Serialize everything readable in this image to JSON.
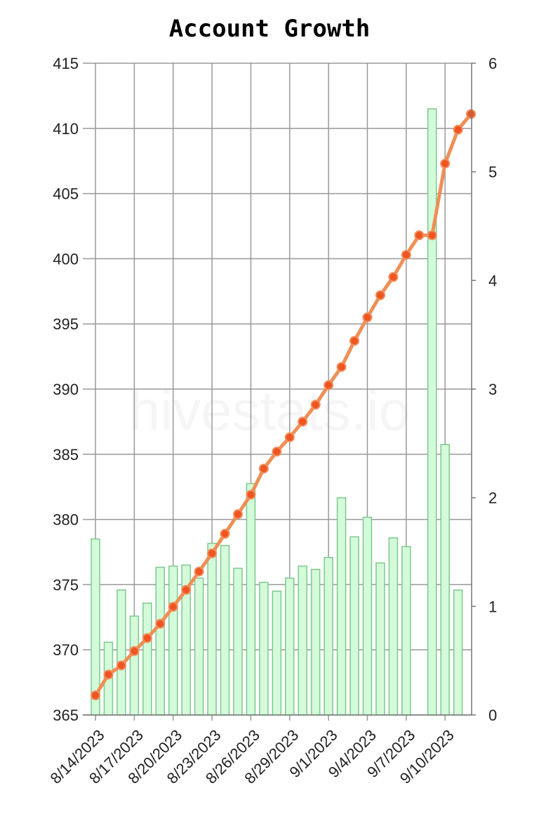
{
  "chart_data": {
    "type": "bar+line",
    "title": "Account Growth",
    "watermark": "hivestats.io",
    "left_axis": {
      "min": 365,
      "max": 415,
      "ticks": [
        "365",
        "370",
        "375",
        "380",
        "385",
        "390",
        "395",
        "400",
        "405",
        "410",
        "415"
      ]
    },
    "right_axis": {
      "min": 0,
      "max": 6,
      "ticks": [
        "0",
        "1",
        "2",
        "3",
        "4",
        "5",
        "6"
      ]
    },
    "x_tick_labels": [
      "8/14/2023",
      "8/17/2023",
      "8/20/2023",
      "8/23/2023",
      "8/26/2023",
      "8/29/2023",
      "9/1/2023",
      "9/4/2023",
      "9/7/2023",
      "9/10/2023"
    ],
    "dates": [
      "8/14/2023",
      "8/15/2023",
      "8/16/2023",
      "8/17/2023",
      "8/18/2023",
      "8/19/2023",
      "8/20/2023",
      "8/21/2023",
      "8/22/2023",
      "8/23/2023",
      "8/24/2023",
      "8/25/2023",
      "8/26/2023",
      "8/27/2023",
      "8/28/2023",
      "8/29/2023",
      "8/30/2023",
      "8/31/2023",
      "9/1/2023",
      "9/2/2023",
      "9/3/2023",
      "9/4/2023",
      "9/5/2023",
      "9/6/2023",
      "9/7/2023",
      "9/8/2023",
      "9/9/2023",
      "9/10/2023",
      "9/11/2023",
      "9/12/2023"
    ],
    "series": [
      {
        "type": "bar",
        "axis": "right",
        "color": "#d4fbd9",
        "values": [
          1.62,
          0.67,
          1.15,
          0.91,
          1.03,
          1.36,
          1.37,
          1.38,
          1.26,
          1.58,
          1.56,
          1.35,
          2.13,
          1.22,
          1.14,
          1.26,
          1.37,
          1.34,
          1.45,
          2.0,
          1.64,
          1.82,
          1.4,
          1.63,
          1.55,
          null,
          5.58,
          2.49,
          1.15,
          null
        ]
      },
      {
        "type": "line",
        "axis": "left",
        "color": "#ee8f55",
        "values": [
          366.5,
          368.1,
          368.8,
          369.9,
          370.9,
          372.0,
          373.3,
          374.6,
          376.0,
          377.4,
          378.9,
          380.4,
          381.9,
          383.9,
          385.2,
          386.3,
          387.5,
          388.8,
          390.3,
          391.7,
          393.7,
          395.5,
          397.2,
          398.6,
          400.3,
          401.8,
          401.8,
          407.3,
          409.9,
          411.1
        ]
      }
    ],
    "grid": true
  }
}
